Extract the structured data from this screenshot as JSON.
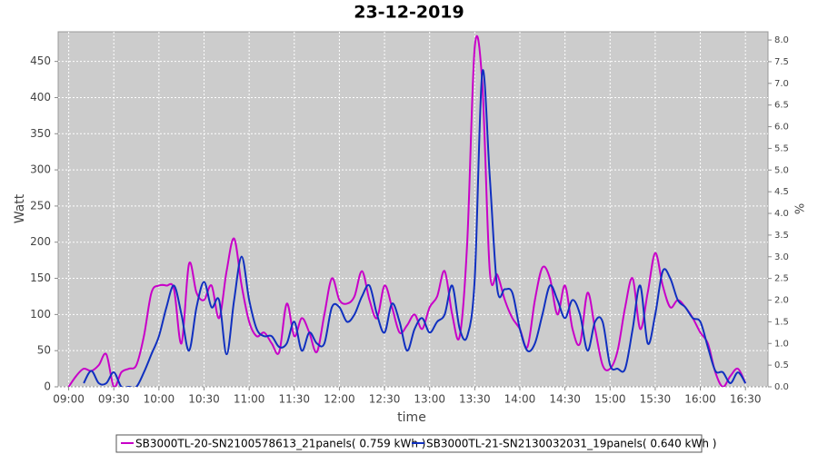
{
  "chart_data": {
    "type": "line",
    "title": "23-12-2019",
    "xlabel": "time",
    "ylabel": "Watt",
    "y2label": "%",
    "x": [
      "09:00",
      "09:05",
      "09:10",
      "09:15",
      "09:20",
      "09:25",
      "09:30",
      "09:35",
      "09:40",
      "09:45",
      "09:50",
      "09:55",
      "10:00",
      "10:05",
      "10:10",
      "10:15",
      "10:20",
      "10:25",
      "10:30",
      "10:35",
      "10:40",
      "10:45",
      "10:50",
      "10:55",
      "11:00",
      "11:05",
      "11:10",
      "11:15",
      "11:20",
      "11:25",
      "11:30",
      "11:35",
      "11:40",
      "11:45",
      "11:50",
      "11:55",
      "12:00",
      "12:05",
      "12:10",
      "12:15",
      "12:20",
      "12:25",
      "12:30",
      "12:35",
      "12:40",
      "12:45",
      "12:50",
      "12:55",
      "13:00",
      "13:05",
      "13:10",
      "13:15",
      "13:20",
      "13:25",
      "13:30",
      "13:35",
      "13:40",
      "13:45",
      "13:50",
      "13:55",
      "14:00",
      "14:05",
      "14:10",
      "14:15",
      "14:20",
      "14:25",
      "14:30",
      "14:35",
      "14:40",
      "14:45",
      "14:50",
      "14:55",
      "15:00",
      "15:05",
      "15:10",
      "15:15",
      "15:20",
      "15:25",
      "15:30",
      "15:35",
      "15:40",
      "15:45",
      "15:50",
      "15:55",
      "16:00",
      "16:05",
      "16:10",
      "16:15",
      "16:20",
      "16:25",
      "16:30"
    ],
    "series": [
      {
        "name": "SB3000TL-20-SN2100578613_21panels( 0.759 kWh )",
        "color": "#c800c8",
        "values": [
          0,
          15,
          25,
          22,
          30,
          45,
          0,
          20,
          25,
          30,
          70,
          130,
          140,
          140,
          135,
          60,
          170,
          130,
          120,
          140,
          95,
          160,
          205,
          140,
          90,
          70,
          75,
          60,
          48,
          115,
          70,
          95,
          75,
          48,
          100,
          150,
          120,
          115,
          125,
          160,
          120,
          95,
          140,
          110,
          75,
          85,
          100,
          80,
          110,
          125,
          160,
          100,
          70,
          200,
          470,
          420,
          160,
          155,
          120,
          95,
          80,
          55,
          120,
          165,
          150,
          100,
          140,
          80,
          60,
          130,
          80,
          30,
          25,
          50,
          110,
          150,
          80,
          130,
          185,
          140,
          110,
          120,
          110,
          95,
          75,
          60,
          20,
          0,
          15,
          25,
          5
        ]
      },
      {
        "name": "SB3000TL-21-SN2130032031_19panels( 0.640 kWh )",
        "color": "#1030c0",
        "values": [
          null,
          null,
          5,
          22,
          5,
          5,
          20,
          0,
          0,
          0,
          20,
          45,
          70,
          110,
          140,
          100,
          50,
          110,
          145,
          110,
          120,
          45,
          120,
          180,
          120,
          80,
          70,
          70,
          55,
          60,
          90,
          50,
          75,
          60,
          60,
          110,
          110,
          90,
          100,
          125,
          140,
          100,
          75,
          115,
          90,
          50,
          80,
          95,
          75,
          90,
          100,
          140,
          80,
          70,
          150,
          435,
          290,
          135,
          135,
          130,
          80,
          50,
          60,
          100,
          140,
          120,
          95,
          120,
          100,
          50,
          90,
          90,
          30,
          25,
          25,
          80,
          140,
          60,
          100,
          160,
          150,
          120,
          110,
          95,
          90,
          55,
          22,
          20,
          5,
          20,
          5
        ]
      }
    ],
    "xlim": [
      "08:53",
      "16:45"
    ],
    "xticks": [
      "09:00",
      "09:30",
      "10:00",
      "10:30",
      "11:00",
      "11:30",
      "12:00",
      "12:30",
      "13:00",
      "13:30",
      "14:00",
      "14:30",
      "15:00",
      "15:30",
      "16:00",
      "16:30"
    ],
    "ylim": [
      0,
      491
    ],
    "yticks": [
      0,
      50,
      100,
      150,
      200,
      250,
      300,
      350,
      400,
      450
    ],
    "y2lim": [
      0,
      8.19
    ],
    "y2ticks": [
      {
        "value": 0,
        "label": "0.0"
      },
      {
        "value": 0.5,
        "label": "0.5"
      },
      {
        "value": 1,
        "label": "1.0"
      },
      {
        "value": 1.5,
        "label": "1.5"
      },
      {
        "value": 2,
        "label": "2.0"
      },
      {
        "value": 2.5,
        "label": "2.5"
      },
      {
        "value": 3,
        "label": "3.0"
      },
      {
        "value": 3.5,
        "label": "3.5"
      },
      {
        "value": 4,
        "label": "4.0"
      },
      {
        "value": 4.5,
        "label": "4.5"
      },
      {
        "value": 5,
        "label": "5.0"
      },
      {
        "value": 5.5,
        "label": "5.5"
      },
      {
        "value": 6,
        "label": "6.0"
      },
      {
        "value": 6.5,
        "label": "6.5"
      },
      {
        "value": 7,
        "label": "7.0"
      },
      {
        "value": 7.5,
        "label": "7.5"
      },
      {
        "value": 8,
        "label": "8.0"
      }
    ],
    "grid": true
  }
}
